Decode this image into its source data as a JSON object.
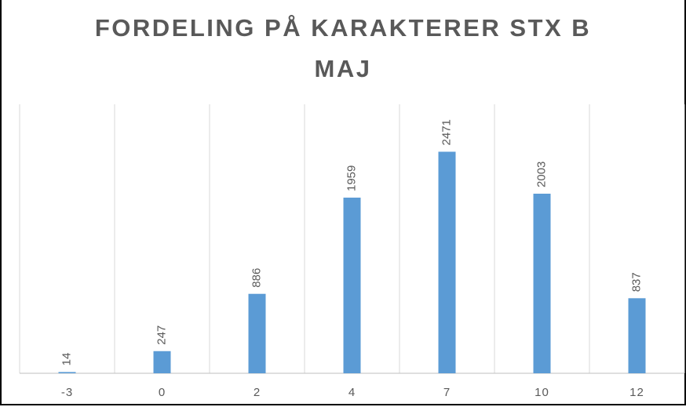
{
  "chart_data": {
    "type": "bar",
    "title": "FORDELING PÅ KARAKTERER STX B MAJ",
    "categories": [
      "-3",
      "0",
      "2",
      "4",
      "7",
      "10",
      "12"
    ],
    "values": [
      14,
      247,
      886,
      1959,
      2471,
      2003,
      837
    ],
    "color": "#5b9bd5",
    "ylim": [
      0,
      3000
    ]
  }
}
